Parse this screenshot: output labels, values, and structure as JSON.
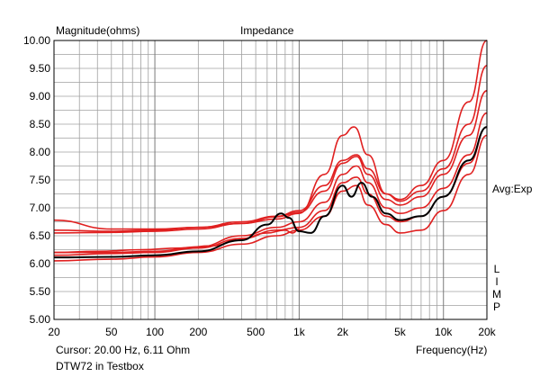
{
  "chart_data": {
    "type": "line",
    "title": "Impedance",
    "ylabel": "Magnitude(ohms)",
    "xlabel": "Frequency(Hz)",
    "x_scale": "log",
    "xlim": [
      20,
      20000
    ],
    "ylim": [
      5.0,
      10.0
    ],
    "grid": true,
    "x_ticks": [
      "20",
      "50",
      "100",
      "200",
      "500",
      "1k",
      "2k",
      "5k",
      "10k",
      "20k"
    ],
    "x_tick_values": [
      20,
      50,
      100,
      200,
      500,
      1000,
      2000,
      5000,
      10000,
      20000
    ],
    "y_ticks": [
      "5.00",
      "5.50",
      "6.00",
      "6.50",
      "7.00",
      "7.50",
      "8.00",
      "8.50",
      "9.00",
      "9.50",
      "10.00"
    ],
    "y_tick_values": [
      5.0,
      5.5,
      6.0,
      6.5,
      7.0,
      7.5,
      8.0,
      8.5,
      9.0,
      9.5,
      10.0
    ],
    "right_label": "Avg:Exp",
    "side_letters": [
      "L",
      "I",
      "M",
      "P"
    ],
    "series": [
      {
        "color": "#e02020",
        "x": [
          20,
          50,
          100,
          200,
          400,
          700,
          1000,
          1500,
          2000,
          2400,
          3000,
          4000,
          5000,
          7000,
          10000,
          15000,
          20000
        ],
        "values": [
          6.78,
          6.62,
          6.62,
          6.65,
          6.72,
          6.8,
          6.9,
          7.6,
          8.3,
          8.45,
          7.95,
          7.25,
          7.15,
          7.4,
          7.85,
          8.9,
          10.0
        ]
      },
      {
        "color": "#e02020",
        "x": [
          20,
          50,
          100,
          200,
          400,
          700,
          1000,
          1500,
          2000,
          2500,
          3000,
          4000,
          5000,
          7000,
          10000,
          15000,
          20000
        ],
        "values": [
          6.6,
          6.58,
          6.6,
          6.65,
          6.75,
          6.85,
          6.95,
          7.4,
          7.85,
          7.95,
          7.7,
          7.25,
          7.12,
          7.3,
          7.7,
          8.5,
          9.55
        ]
      },
      {
        "color": "#e02020",
        "x": [
          20,
          50,
          100,
          200,
          400,
          700,
          1000,
          1500,
          2000,
          2500,
          3000,
          4000,
          5000,
          7000,
          10000,
          15000,
          20000
        ],
        "values": [
          6.55,
          6.56,
          6.58,
          6.62,
          6.72,
          6.84,
          6.92,
          7.3,
          7.8,
          7.92,
          7.6,
          7.15,
          7.05,
          7.2,
          7.6,
          8.3,
          9.1
        ]
      },
      {
        "color": "#e02020",
        "x": [
          20,
          50,
          100,
          200,
          400,
          700,
          1000,
          1500,
          2000,
          2500,
          3000,
          4000,
          5000,
          7000,
          10000,
          15000,
          20000
        ],
        "values": [
          6.2,
          6.2,
          6.22,
          6.3,
          6.5,
          6.65,
          6.75,
          7.1,
          7.6,
          7.75,
          7.45,
          7.0,
          6.9,
          7.0,
          7.35,
          7.95,
          8.7
        ]
      },
      {
        "color": "#e02020",
        "x": [
          20,
          50,
          100,
          200,
          400,
          700,
          1000,
          1500,
          2000,
          2500,
          3000,
          4000,
          5000,
          7000,
          10000,
          15000,
          20000
        ],
        "values": [
          6.15,
          6.18,
          6.2,
          6.28,
          6.45,
          6.6,
          6.65,
          6.95,
          7.45,
          7.55,
          7.25,
          6.85,
          6.75,
          6.85,
          7.2,
          7.8,
          8.45
        ]
      },
      {
        "color": "#e02020",
        "x": [
          20,
          50,
          100,
          200,
          400,
          700,
          1000,
          1500,
          2000,
          2500,
          3000,
          4000,
          5000,
          7000,
          10000,
          15000,
          20000
        ],
        "values": [
          6.05,
          6.08,
          6.12,
          6.2,
          6.35,
          6.5,
          6.6,
          6.85,
          7.3,
          7.4,
          7.05,
          6.7,
          6.55,
          6.6,
          6.95,
          7.6,
          8.3
        ]
      },
      {
        "color": "#e02020",
        "x": [
          20,
          40,
          80,
          150,
          250,
          400,
          600,
          800,
          900,
          1000
        ],
        "values": [
          6.2,
          6.22,
          6.25,
          6.28,
          6.32,
          6.45,
          6.55,
          6.6,
          6.55,
          6.62
        ]
      },
      {
        "color": "#000000",
        "x": [
          20,
          50,
          100,
          200,
          400,
          600,
          750,
          850,
          1000,
          1200,
          1500,
          2000,
          2300,
          2700,
          3200,
          4000,
          5000,
          7000,
          10000,
          15000,
          20000
        ],
        "values": [
          6.11,
          6.12,
          6.15,
          6.22,
          6.42,
          6.7,
          6.9,
          6.82,
          6.58,
          6.55,
          6.85,
          7.4,
          7.2,
          7.45,
          7.2,
          6.9,
          6.78,
          6.85,
          7.2,
          7.85,
          8.45
        ]
      }
    ]
  },
  "footer": {
    "cursor": "Cursor: 20.00 Hz, 6.11 Ohm",
    "caption": "DTW72 in Testbox"
  }
}
